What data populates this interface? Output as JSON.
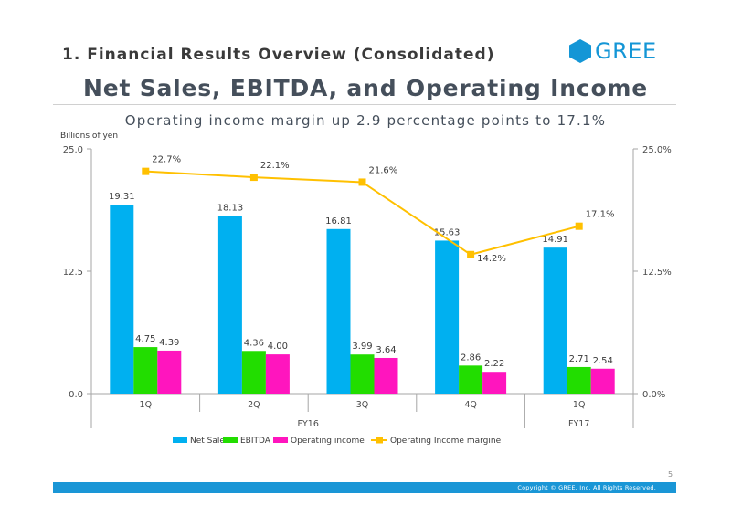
{
  "header": {
    "section_title": "1. Financial Results Overview (Consolidated)",
    "logo_text": "GREE",
    "main_title": "Net Sales, EBITDA, and Operating Income",
    "subtitle": "Operating income margin up 2.9 percentage points to 17.1%"
  },
  "colors": {
    "net_sales": "#00b0f0",
    "ebitda": "#22dd00",
    "operating_income": "#ff15be",
    "margin_line": "#ffc000",
    "brand": "#1496d6"
  },
  "chart_data": {
    "type": "bar",
    "ylabel": "Billions of yen",
    "ylim": [
      0,
      25
    ],
    "y2lim": [
      0,
      25
    ],
    "yticks": [
      "0.0",
      "12.5",
      "25.0"
    ],
    "y2ticks": [
      "0.0%",
      "12.5%",
      "25.0%"
    ],
    "categories": [
      "1Q",
      "2Q",
      "3Q",
      "4Q",
      "1Q"
    ],
    "groups": [
      {
        "label": "FY16",
        "count": 4
      },
      {
        "label": "FY17",
        "count": 1
      }
    ],
    "series": [
      {
        "name": "Net Sales",
        "type": "bar",
        "values": [
          19.31,
          18.13,
          16.81,
          15.63,
          14.91
        ],
        "labels": [
          "19.31",
          "18.13",
          "16.81",
          "15.63",
          "14.91"
        ]
      },
      {
        "name": "EBITDA",
        "type": "bar",
        "values": [
          4.75,
          4.36,
          3.99,
          2.86,
          2.71
        ],
        "labels": [
          "4.75",
          "4.36",
          "3.99",
          "2.86",
          "2.71"
        ]
      },
      {
        "name": "Operating income",
        "type": "bar",
        "values": [
          4.39,
          4.0,
          3.64,
          2.22,
          2.54
        ],
        "labels": [
          "4.39",
          "4.00",
          "3.64",
          "2.22",
          "2.54"
        ]
      },
      {
        "name": "Operating Income margine",
        "type": "line",
        "axis": "right",
        "values": [
          22.7,
          22.1,
          21.6,
          14.2,
          17.1
        ],
        "labels": [
          "22.7%",
          "22.1%",
          "21.6%",
          "14.2%",
          "17.1%"
        ]
      }
    ],
    "legend_position": "bottom"
  },
  "footer": {
    "page_number": "5",
    "copyright": "Copyright © GREE, Inc. All Rights Reserved."
  }
}
